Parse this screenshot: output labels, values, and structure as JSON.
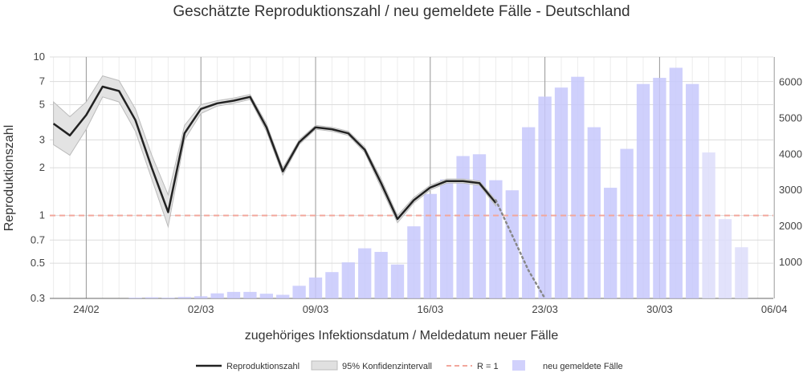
{
  "chart_data": {
    "type": "line",
    "title": "Geschätzte Reproduktionszahl / neu gemeldete Fälle - Deutschland",
    "xlabel": "zugehöriges Infektionsdatum / Meldedatum neuer Fälle",
    "ylabel": "Reproduktionszahl",
    "y_scale": "log",
    "ylim": [
      0.3,
      10
    ],
    "y2lim": [
      0,
      6700
    ],
    "y_ticks": [
      "10",
      "7",
      "5",
      "3",
      "2",
      "1",
      "0.7",
      "0.5",
      "0.3"
    ],
    "y2_ticks": [
      "6000",
      "5000",
      "4000",
      "3000",
      "2000",
      "1000"
    ],
    "x_ticks": [
      "24/02",
      "02/03",
      "09/03",
      "16/03",
      "23/03",
      "30/03",
      "06/04"
    ],
    "grid": true,
    "legend_position": "bottom",
    "legend": {
      "r": "Reproduktionszahl",
      "ci": "95% Konfidenzintervall",
      "r1": "R = 1",
      "cases": "neu gemeldete Fälle"
    },
    "x_start": "22/02",
    "reproduction": [
      3.8,
      3.2,
      4.3,
      6.5,
      6.1,
      4.0,
      2.0,
      1.05,
      3.3,
      4.7,
      5.1,
      5.3,
      5.6,
      3.6,
      1.9,
      2.9,
      3.6,
      3.5,
      3.3,
      2.6,
      1.6,
      0.95,
      1.25,
      1.5,
      1.65,
      1.65,
      1.6,
      1.2,
      0.75,
      0.95,
      1.25,
      1.3,
      1.35,
      1.25
    ],
    "reproduction_trend_end": [
      1.25,
      0.75,
      0.45,
      0.3
    ],
    "ci_upper": [
      5.2,
      4.2,
      5.2,
      7.6,
      7.1,
      4.7,
      2.4,
      1.35,
      3.7,
      5.0,
      5.3,
      5.5,
      5.8,
      3.8,
      2.0,
      3.0,
      3.7,
      3.6,
      3.4,
      2.7,
      1.7,
      1.0,
      1.3,
      1.55,
      1.7,
      1.7,
      1.65,
      1.25
    ],
    "ci_lower": [
      2.8,
      2.4,
      3.5,
      5.6,
      5.2,
      3.4,
      1.7,
      0.85,
      3.0,
      4.4,
      4.9,
      5.1,
      5.4,
      3.4,
      1.8,
      2.8,
      3.5,
      3.4,
      3.2,
      2.5,
      1.5,
      0.9,
      1.2,
      1.45,
      1.6,
      1.6,
      1.55,
      1.15
    ],
    "cases": [
      0,
      0,
      0,
      0,
      0,
      20,
      30,
      20,
      40,
      60,
      140,
      180,
      180,
      130,
      100,
      350,
      580,
      730,
      1000,
      1390,
      1290,
      940,
      2000,
      2900,
      3300,
      3950,
      4000,
      3280,
      3000,
      4750,
      5600,
      5850,
      6150,
      4750,
      3070,
      4150,
      5950,
      6120,
      6400,
      5950,
      4050,
      2200,
      1420
    ]
  }
}
